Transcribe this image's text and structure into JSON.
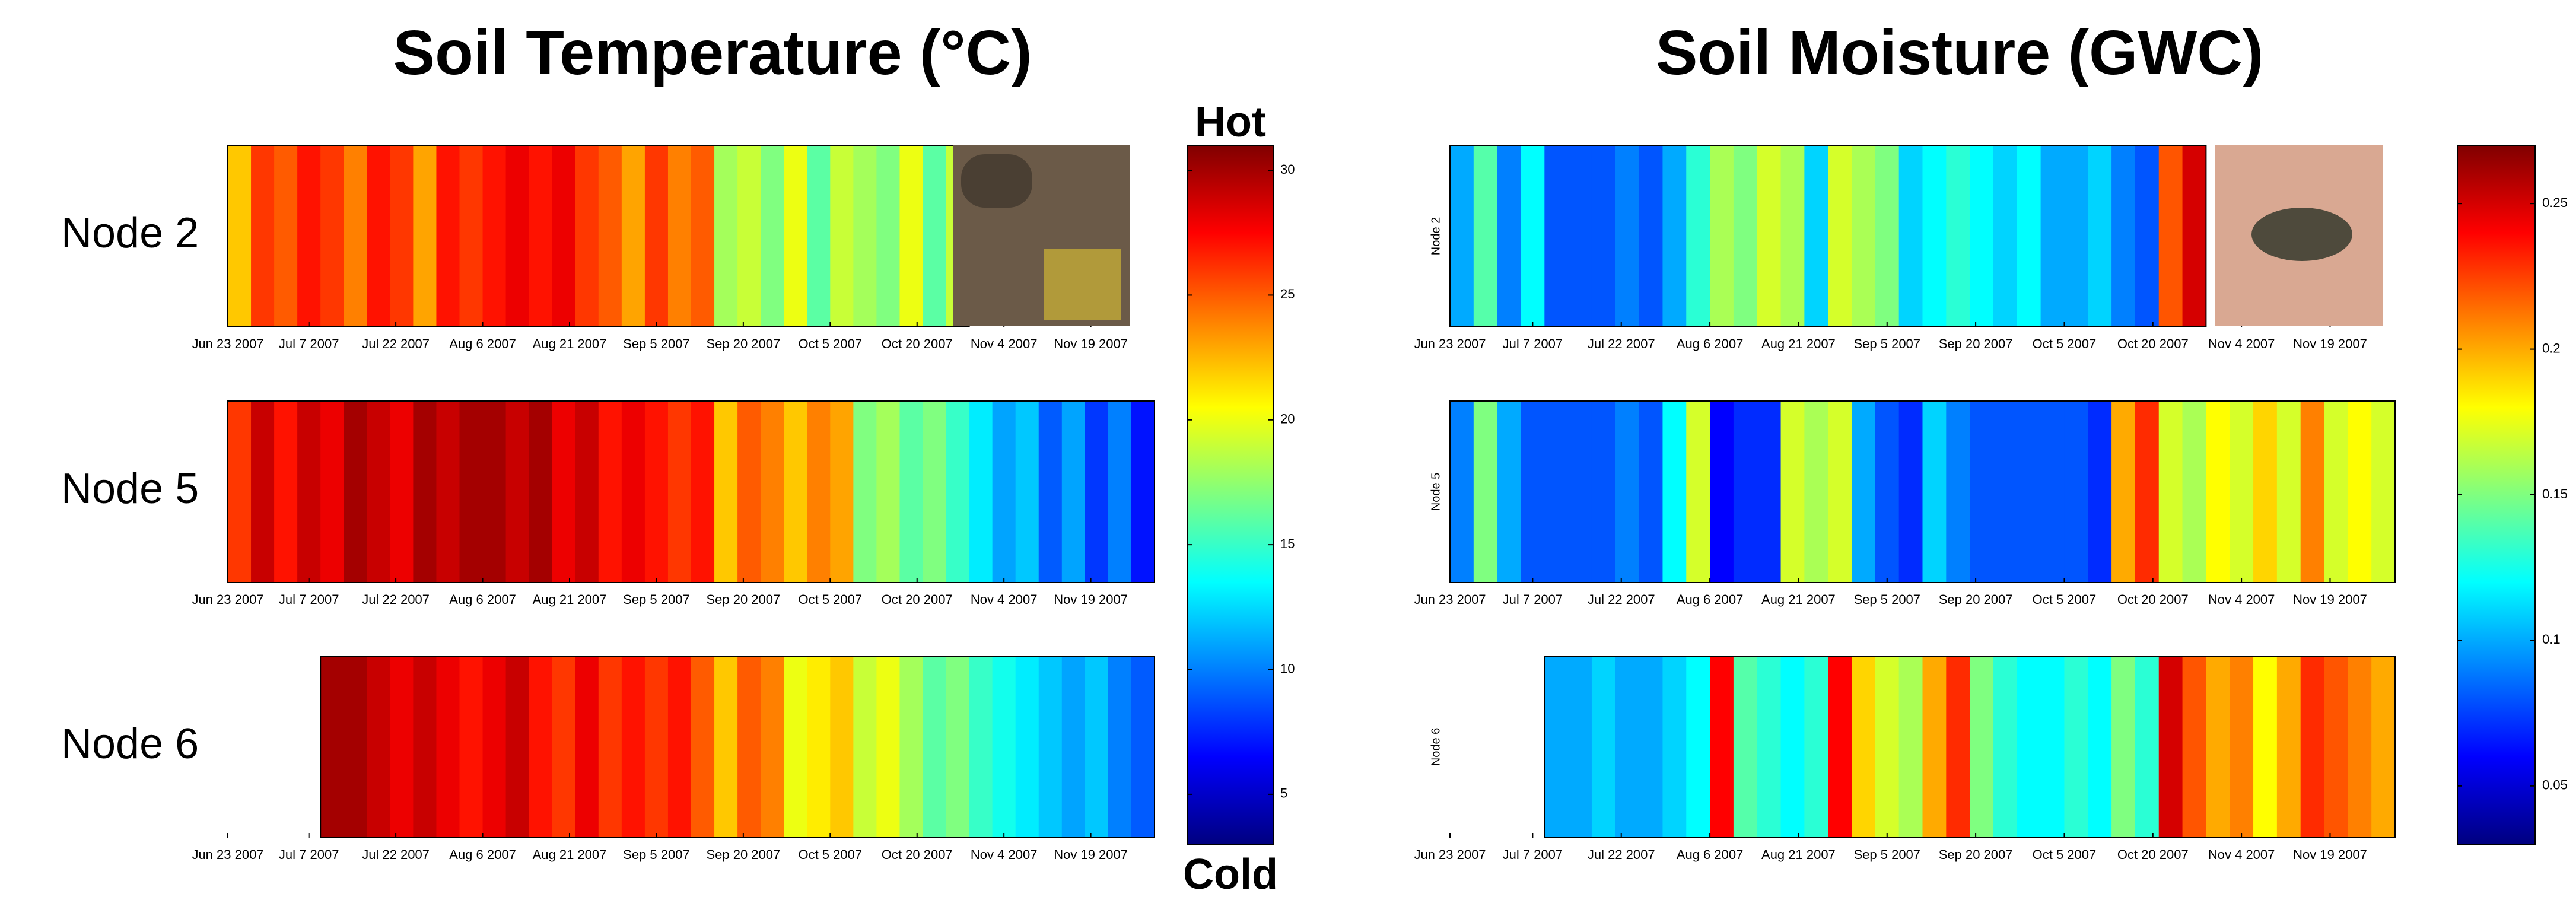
{
  "chart_data": [
    {
      "type": "heatmap",
      "title": "Soil Temperature (°C)",
      "colorbar_top_label": "Hot",
      "colorbar_bottom_label": "Cold",
      "colormap": "jet",
      "x": [
        0,
        4,
        8,
        12,
        16,
        20,
        24,
        28,
        32,
        36,
        40,
        44,
        48,
        52,
        56,
        60,
        64,
        68,
        72,
        76,
        80,
        84,
        88,
        92,
        96,
        100,
        104,
        108,
        112,
        116,
        120,
        124,
        128,
        132,
        136,
        140,
        144,
        148,
        152,
        156
      ],
      "xlim": [
        0,
        160
      ],
      "xticks": [
        {
          "value": 0,
          "label": "Jun 23 2007"
        },
        {
          "value": 14,
          "label": "Jul  7 2007"
        },
        {
          "value": 29,
          "label": "Jul 22 2007"
        },
        {
          "value": 44,
          "label": "Aug  6 2007"
        },
        {
          "value": 59,
          "label": "Aug 21 2007"
        },
        {
          "value": 74,
          "label": "Sep  5 2007"
        },
        {
          "value": 89,
          "label": "Sep 20 2007"
        },
        {
          "value": 104,
          "label": "Oct  5 2007"
        },
        {
          "value": 119,
          "label": "Oct 20 2007"
        },
        {
          "value": 134,
          "label": "Nov  4 2007"
        },
        {
          "value": 149,
          "label": "Nov 19 2007"
        }
      ],
      "clim": [
        3,
        31
      ],
      "cticks": [
        5,
        10,
        15,
        20,
        25,
        30
      ],
      "series": [
        {
          "name": "Node 2",
          "values": [
            22,
            26,
            25,
            27,
            26,
            24,
            27,
            26,
            23,
            27,
            26,
            27,
            28,
            27,
            28,
            26,
            25,
            23,
            26,
            24,
            25,
            18,
            19,
            17,
            20,
            16,
            19,
            18,
            17,
            20,
            16,
            19,
            null,
            null,
            null,
            null,
            null,
            null,
            null,
            null
          ]
        },
        {
          "name": "Node 5",
          "values": [
            26,
            29,
            27,
            29,
            28,
            30,
            29,
            28,
            30,
            29,
            30,
            30,
            29,
            30,
            28,
            29,
            27,
            28,
            27,
            26,
            27,
            22,
            25,
            24,
            22,
            24,
            23,
            17,
            18,
            16,
            17,
            15,
            13,
            11,
            12,
            9,
            11,
            8,
            10,
            7
          ]
        },
        {
          "name": "Node 6",
          "values": [
            null,
            null,
            null,
            null,
            30,
            30,
            29,
            28,
            29,
            28,
            27,
            28,
            29,
            27,
            26,
            28,
            26,
            27,
            26,
            27,
            25,
            22,
            25,
            24,
            20,
            21,
            22,
            19,
            20,
            18,
            16,
            17,
            15,
            14,
            13,
            12,
            11,
            12,
            10,
            9
          ]
        }
      ]
    },
    {
      "type": "heatmap",
      "title": "Soil Moisture (GWC)",
      "colormap": "jet",
      "x": [
        0,
        4,
        8,
        12,
        16,
        20,
        24,
        28,
        32,
        36,
        40,
        44,
        48,
        52,
        56,
        60,
        64,
        68,
        72,
        76,
        80,
        84,
        88,
        92,
        96,
        100,
        104,
        108,
        112,
        116,
        120,
        124,
        128,
        132,
        136,
        140,
        144,
        148,
        152,
        156
      ],
      "xlim": [
        0,
        160
      ],
      "xticks": [
        {
          "value": 0,
          "label": "Jun 23 2007"
        },
        {
          "value": 14,
          "label": "Jul  7 2007"
        },
        {
          "value": 29,
          "label": "Jul 22 2007"
        },
        {
          "value": 44,
          "label": "Aug  6 2007"
        },
        {
          "value": 59,
          "label": "Aug 21 2007"
        },
        {
          "value": 74,
          "label": "Sep  5 2007"
        },
        {
          "value": 89,
          "label": "Sep 20 2007"
        },
        {
          "value": 104,
          "label": "Oct  5 2007"
        },
        {
          "value": 119,
          "label": "Oct 20 2007"
        },
        {
          "value": 134,
          "label": "Nov  4 2007"
        },
        {
          "value": 149,
          "label": "Nov 19 2007"
        }
      ],
      "clim": [
        0.03,
        0.27
      ],
      "cticks": [
        0.05,
        0.1,
        0.15,
        0.2,
        0.25
      ],
      "series": [
        {
          "name": "Node 2",
          "values": [
            0.1,
            0.14,
            0.09,
            0.12,
            0.08,
            0.08,
            0.08,
            0.09,
            0.08,
            0.1,
            0.13,
            0.16,
            0.15,
            0.17,
            0.16,
            0.11,
            0.17,
            0.16,
            0.15,
            0.11,
            0.12,
            0.13,
            0.12,
            0.11,
            0.12,
            0.1,
            0.1,
            0.11,
            0.09,
            0.08,
            0.22,
            0.25,
            null,
            null,
            null,
            null,
            null,
            null,
            null,
            null
          ]
        },
        {
          "name": "Node 5",
          "values": [
            0.09,
            0.15,
            0.1,
            0.08,
            0.08,
            0.08,
            0.08,
            0.09,
            0.08,
            0.12,
            0.17,
            0.06,
            0.07,
            0.07,
            0.17,
            0.16,
            0.17,
            0.1,
            0.08,
            0.07,
            0.11,
            0.09,
            0.08,
            0.08,
            0.08,
            0.08,
            0.08,
            0.07,
            0.2,
            0.23,
            0.17,
            0.16,
            0.18,
            0.17,
            0.19,
            0.17,
            0.21,
            0.17,
            0.18,
            0.17
          ]
        },
        {
          "name": "Node 6",
          "values": [
            null,
            null,
            null,
            null,
            0.1,
            0.1,
            0.11,
            0.1,
            0.1,
            0.11,
            0.12,
            0.24,
            0.14,
            0.13,
            0.12,
            0.13,
            0.24,
            0.19,
            0.17,
            0.16,
            0.2,
            0.23,
            0.15,
            0.13,
            0.12,
            0.12,
            0.13,
            0.12,
            0.15,
            0.13,
            0.25,
            0.22,
            0.2,
            0.21,
            0.18,
            0.2,
            0.23,
            0.22,
            0.21,
            0.2
          ]
        }
      ]
    }
  ]
}
